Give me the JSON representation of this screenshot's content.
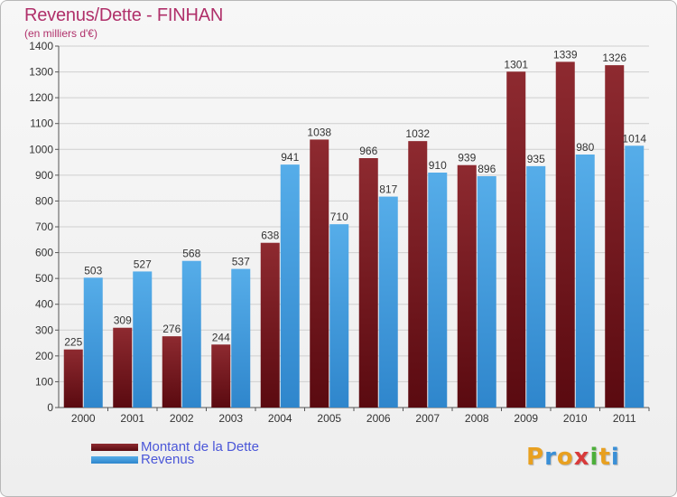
{
  "header": {
    "title": "Revenus/Dette - FINHAN",
    "subtitle": "(en milliers d'€)"
  },
  "colors": {
    "dette": "#7a1e24",
    "revenus": "#3f9be0",
    "title": "#b0306a",
    "axis_text": "#333333",
    "gridline": "#cfcfcf"
  },
  "legend": {
    "items": [
      {
        "label": "Montant de la Dette",
        "color": "#7a1e24"
      },
      {
        "label": "Revenus",
        "color": "#3f9be0"
      }
    ]
  },
  "logo": {
    "text": "Proxiti",
    "letters": [
      {
        "ch": "P",
        "color": "#e8a020"
      },
      {
        "ch": "r",
        "color": "#3a8fd6"
      },
      {
        "ch": "o",
        "color": "#e8a020"
      },
      {
        "ch": "x",
        "color": "#d83a3a"
      },
      {
        "ch": "i",
        "color": "#4caf3a"
      },
      {
        "ch": "t",
        "color": "#e8a020"
      },
      {
        "ch": "i",
        "color": "#3a8fd6"
      }
    ]
  },
  "chart_data": {
    "type": "bar",
    "title": "Revenus/Dette - FINHAN",
    "subtitle": "(en milliers d'€)",
    "xlabel": "",
    "ylabel": "",
    "categories": [
      "2000",
      "2001",
      "2002",
      "2003",
      "2004",
      "2005",
      "2006",
      "2007",
      "2008",
      "2009",
      "2010",
      "2011"
    ],
    "series": [
      {
        "name": "Montant de la Dette",
        "values": [
          225,
          309,
          276,
          244,
          638,
          1038,
          966,
          1032,
          939,
          1301,
          1339,
          1326
        ]
      },
      {
        "name": "Revenus",
        "values": [
          503,
          527,
          568,
          537,
          941,
          710,
          817,
          910,
          896,
          935,
          980,
          1014
        ]
      }
    ],
    "ylim": [
      0,
      1400
    ],
    "yticks": [
      0,
      100,
      200,
      300,
      400,
      500,
      600,
      700,
      800,
      900,
      1000,
      1100,
      1200,
      1300,
      1400
    ],
    "grid": true,
    "legend_position": "bottom-left"
  }
}
